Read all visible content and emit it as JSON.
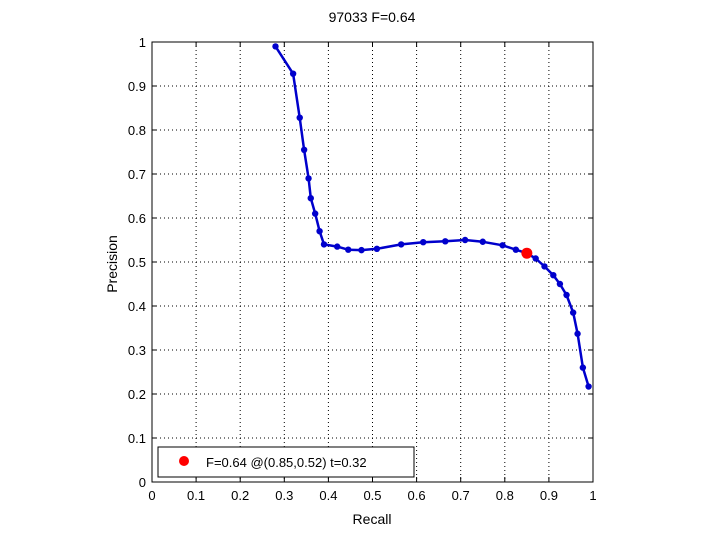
{
  "chart_data": {
    "type": "line",
    "title": "97033 F=0.64",
    "xlabel": "Recall",
    "ylabel": "Precision",
    "xlim": [
      0,
      1
    ],
    "ylim": [
      0,
      1
    ],
    "xticks": [
      "0",
      "0.1",
      "0.2",
      "0.3",
      "0.4",
      "0.5",
      "0.6",
      "0.7",
      "0.8",
      "0.9",
      "1"
    ],
    "yticks": [
      "0",
      "0.1",
      "0.2",
      "0.3",
      "0.4",
      "0.5",
      "0.6",
      "0.7",
      "0.8",
      "0.9",
      "1"
    ],
    "grid": true,
    "legend_position": "bottom-left",
    "series": [
      {
        "color": "#0000cc",
        "x": [
          0.28,
          0.32,
          0.335,
          0.345,
          0.355,
          0.36,
          0.37,
          0.38,
          0.39,
          0.42,
          0.445,
          0.475,
          0.51,
          0.565,
          0.615,
          0.665,
          0.71,
          0.75,
          0.795,
          0.825,
          0.85,
          0.87,
          0.89,
          0.91,
          0.925,
          0.94,
          0.955,
          0.965,
          0.977,
          0.99
        ],
        "y": [
          0.99,
          0.928,
          0.828,
          0.755,
          0.69,
          0.645,
          0.61,
          0.57,
          0.54,
          0.535,
          0.528,
          0.527,
          0.53,
          0.54,
          0.545,
          0.547,
          0.55,
          0.546,
          0.538,
          0.528,
          0.52,
          0.508,
          0.49,
          0.47,
          0.45,
          0.425,
          0.385,
          0.337,
          0.26,
          0.217
        ]
      }
    ],
    "highlight": {
      "x": 0.85,
      "y": 0.52,
      "color": "#ff0000"
    },
    "legend": {
      "label": "F=0.64 @(0.85,0.52) t=0.32",
      "marker_color": "#ff0000"
    }
  }
}
